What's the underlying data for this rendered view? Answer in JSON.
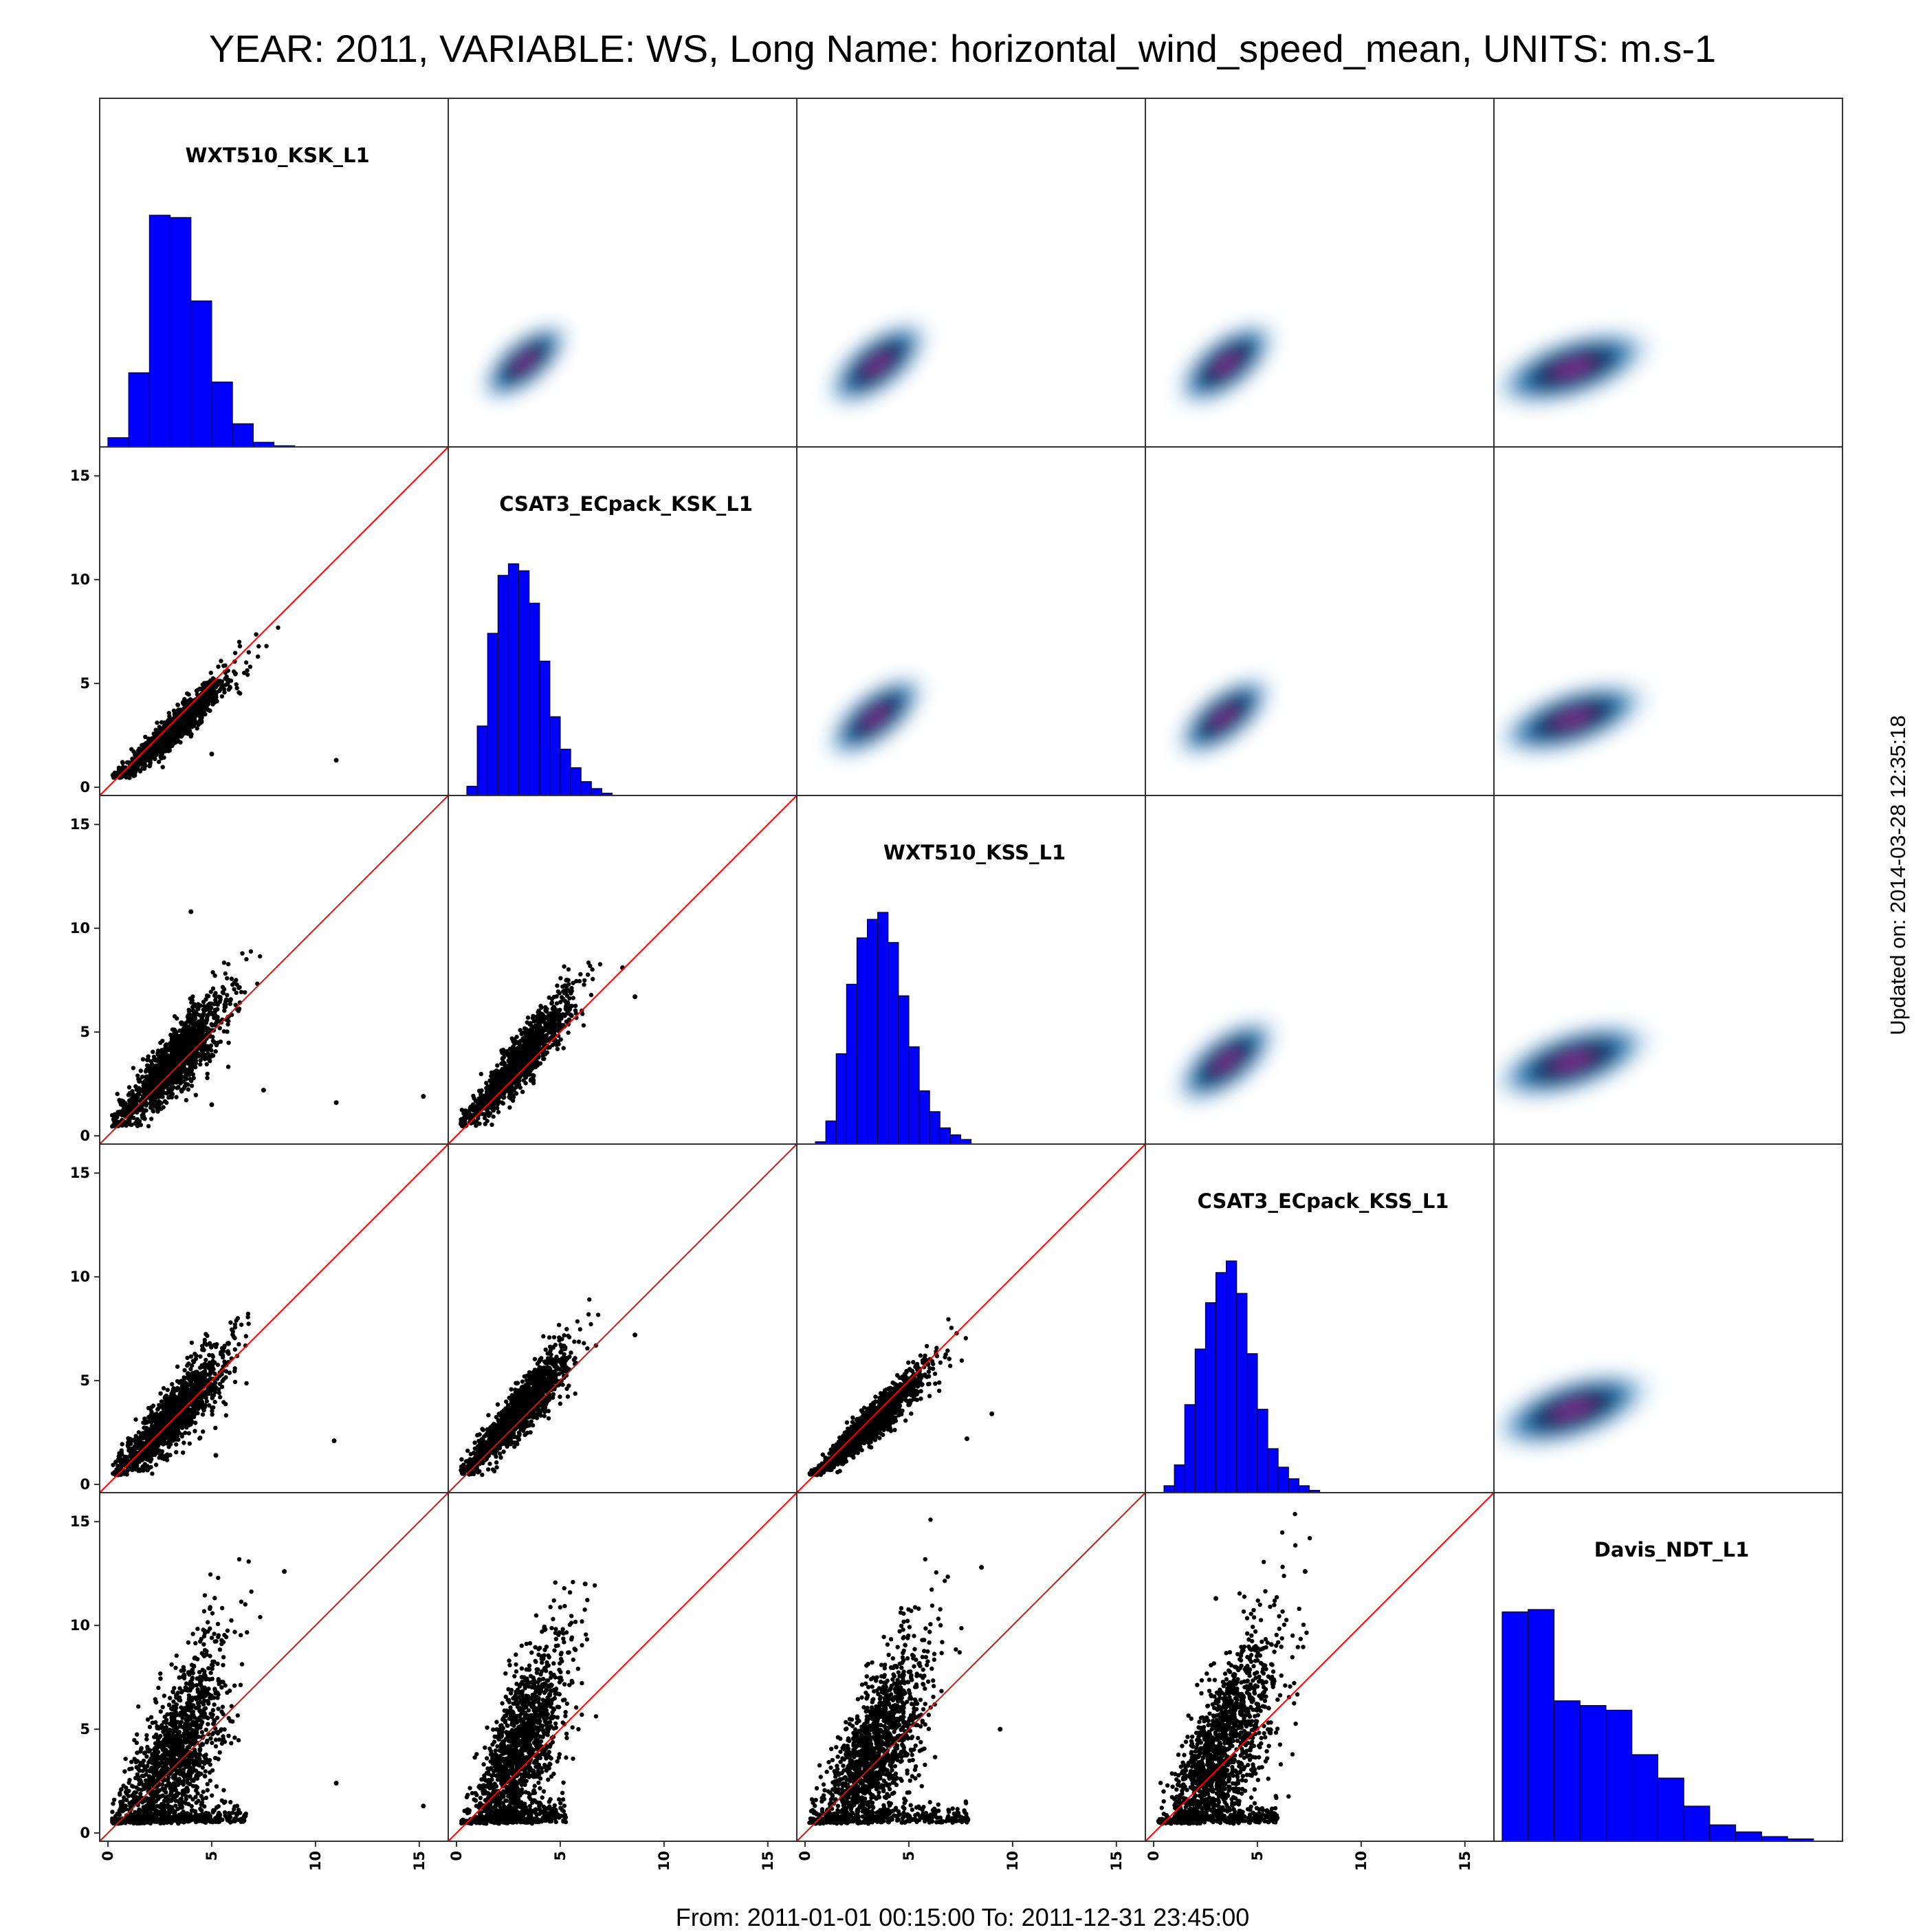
{
  "page": {
    "title": "YEAR: 2011, VARIABLE: WS, Long Name: horizontal_wind_speed_mean, UNITS: m.s-1",
    "footer": "From: 2011-01-01 00:15:00 To: 2011-12-31 23:45:00",
    "updated": "Updated on: 2014-03-28 12:35:18"
  },
  "colors": {
    "histogram_fill": "#0000ff",
    "histogram_edge": "#000033",
    "points": "#000000",
    "identity_line": "#ff0000",
    "density_low": "#dcebf7",
    "density_mid": "#2c7fb8",
    "density_dark": "#0b2a55",
    "density_peak": "#7b2d8e"
  },
  "chart_data": {
    "type": "scatter-matrix",
    "variables": [
      "WXT510_KSK_L1",
      "CSAT3_ECpack_KSK_L1",
      "WXT510_KSS_L1",
      "CSAT3_ECpack_KSS_L1",
      "Davis_NDT_L1"
    ],
    "axis_range": [
      0,
      16
    ],
    "ticks": [
      0,
      5,
      10,
      15
    ],
    "tick_labels": [
      "0",
      "5",
      "10",
      "15"
    ],
    "lower_triangle": "scatter with 1:1 line",
    "upper_triangle": "2D kernel density",
    "diagonal": "histogram",
    "histograms": [
      {
        "variable": "WXT510_KSK_L1",
        "bin_width": 1,
        "start": 0,
        "counts": [
          4,
          32,
          100,
          99,
          63,
          28,
          10,
          2,
          0.5
        ]
      },
      {
        "variable": "CSAT3_ECpack_KSK_L1",
        "bin_width": 0.5,
        "start": 0.5,
        "counts": [
          4,
          30,
          70,
          95,
          100,
          97,
          83,
          58,
          34,
          20,
          12,
          6,
          3,
          1
        ]
      },
      {
        "variable": "WXT510_KSS_L1",
        "bin_width": 0.5,
        "start": 0.5,
        "counts": [
          1,
          10,
          39,
          69,
          89,
          97,
          100,
          87,
          64,
          42,
          23,
          14,
          7,
          4,
          2
        ]
      },
      {
        "variable": "CSAT3_ECpack_KSS_L1",
        "bin_width": 0.5,
        "start": 0.5,
        "counts": [
          3,
          12,
          38,
          62,
          82,
          95,
          100,
          86,
          60,
          36,
          19,
          11,
          6,
          3,
          1
        ]
      },
      {
        "variable": "Davis_NDT_L1",
        "bin_width": 1.25,
        "start": 0,
        "counts": [
          98,
          99,
          60,
          58,
          56,
          37,
          27,
          15,
          7,
          4,
          2,
          1
        ]
      }
    ],
    "scatter_pairs": [
      {
        "x": "WXT510_KSK_L1",
        "y": "CSAT3_ECpack_KSK_L1",
        "slope": 0.9,
        "intercept": 0.0,
        "spread": 0.35,
        "x_mean": 3.1,
        "x_sd": 1.3,
        "x_max": 8.7,
        "outliers": [
          [
            11.0,
            1.3
          ],
          [
            5.0,
            1.6
          ]
        ]
      },
      {
        "x": "WXT510_KSK_L1",
        "y": "WXT510_KSS_L1",
        "slope": 1.05,
        "intercept": 0.2,
        "spread": 0.7,
        "x_mean": 3.1,
        "x_sd": 1.3,
        "x_max": 8.7,
        "outliers": [
          [
            4.0,
            10.8
          ],
          [
            11.0,
            1.6
          ],
          [
            15.2,
            1.9
          ],
          [
            7.5,
            2.2
          ],
          [
            5.0,
            1.5
          ]
        ]
      },
      {
        "x": "CSAT3_ECpack_KSK_L1",
        "y": "WXT510_KSS_L1",
        "slope": 1.12,
        "intercept": 0.2,
        "spread": 0.55,
        "x_mean": 3.0,
        "x_sd": 1.2,
        "x_max": 7.3,
        "outliers": [
          [
            8.6,
            6.7
          ],
          [
            8.0,
            8.1
          ]
        ]
      },
      {
        "x": "WXT510_KSK_L1",
        "y": "CSAT3_ECpack_KSS_L1",
        "slope": 1.0,
        "intercept": 0.2,
        "spread": 0.65,
        "x_mean": 3.1,
        "x_sd": 1.3,
        "x_max": 8.7,
        "outliers": [
          [
            10.9,
            2.1
          ],
          [
            5.2,
            1.4
          ]
        ]
      },
      {
        "x": "CSAT3_ECpack_KSK_L1",
        "y": "CSAT3_ECpack_KSS_L1",
        "slope": 1.1,
        "intercept": 0.2,
        "spread": 0.55,
        "x_mean": 3.0,
        "x_sd": 1.2,
        "x_max": 7.3,
        "outliers": [
          [
            8.6,
            7.2
          ]
        ]
      },
      {
        "x": "WXT510_KSS_L1",
        "y": "CSAT3_ECpack_KSS_L1",
        "slope": 0.93,
        "intercept": 0.0,
        "spread": 0.38,
        "x_mean": 3.3,
        "x_sd": 1.3,
        "x_max": 9.9,
        "outliers": [
          [
            9.0,
            3.4
          ],
          [
            7.8,
            2.2
          ]
        ]
      },
      {
        "x": "WXT510_KSK_L1",
        "y": "Davis_NDT_L1",
        "slope": 1.35,
        "intercept": -0.6,
        "spread": 1.7,
        "x_mean": 3.1,
        "x_sd": 1.3,
        "x_max": 8.7,
        "outliers": [
          [
            11.0,
            2.4
          ],
          [
            15.2,
            1.3
          ],
          [
            8.5,
            12.6
          ]
        ]
      },
      {
        "x": "CSAT3_ECpack_KSK_L1",
        "y": "Davis_NDT_L1",
        "slope": 1.55,
        "intercept": -0.7,
        "spread": 1.6,
        "x_mean": 3.0,
        "x_sd": 1.2,
        "x_max": 7.3,
        "outliers": [
          [
            6.2,
            12.0
          ]
        ]
      },
      {
        "x": "WXT510_KSS_L1",
        "y": "Davis_NDT_L1",
        "slope": 1.35,
        "intercept": -0.5,
        "spread": 1.6,
        "x_mean": 3.3,
        "x_sd": 1.3,
        "x_max": 9.9,
        "outliers": [
          [
            9.4,
            5.0
          ],
          [
            8.5,
            12.8
          ]
        ]
      },
      {
        "x": "CSAT3_ECpack_KSS_L1",
        "y": "Davis_NDT_L1",
        "slope": 1.4,
        "intercept": -0.5,
        "spread": 1.6,
        "x_mean": 3.3,
        "x_sd": 1.3,
        "x_max": 8.0,
        "outliers": [
          [
            3.0,
            11.3
          ],
          [
            7.3,
            12.6
          ]
        ]
      }
    ],
    "density_cores": [
      {
        "x": "CSAT3_ECpack_KSK_L1",
        "y": "WXT510_KSK_L1",
        "center": [
          3.3,
          3.7
        ],
        "rx": 3.2,
        "ry": 1.5,
        "angle": -40
      },
      {
        "x": "WXT510_KSS_L1",
        "y": "WXT510_KSK_L1",
        "center": [
          3.5,
          3.6
        ],
        "rx": 3.6,
        "ry": 1.7,
        "angle": -38
      },
      {
        "x": "CSAT3_ECpack_KSS_L1",
        "y": "WXT510_KSK_L1",
        "center": [
          3.5,
          3.6
        ],
        "rx": 3.5,
        "ry": 1.7,
        "angle": -38
      },
      {
        "x": "Davis_NDT_L1",
        "y": "WXT510_KSK_L1",
        "center": [
          3.4,
          3.4
        ],
        "rx": 4.8,
        "ry": 1.9,
        "angle": -18
      },
      {
        "x": "WXT510_KSS_L1",
        "y": "CSAT3_ECpack_KSK_L1",
        "center": [
          3.4,
          3.4
        ],
        "rx": 3.5,
        "ry": 1.6,
        "angle": -38
      },
      {
        "x": "CSAT3_ECpack_KSS_L1",
        "y": "CSAT3_ECpack_KSK_L1",
        "center": [
          3.4,
          3.4
        ],
        "rx": 3.4,
        "ry": 1.6,
        "angle": -38
      },
      {
        "x": "Davis_NDT_L1",
        "y": "CSAT3_ECpack_KSK_L1",
        "center": [
          3.4,
          3.3
        ],
        "rx": 4.6,
        "ry": 1.8,
        "angle": -18
      },
      {
        "x": "CSAT3_ECpack_KSS_L1",
        "y": "WXT510_KSS_L1",
        "center": [
          3.5,
          3.6
        ],
        "rx": 3.6,
        "ry": 1.7,
        "angle": -38
      },
      {
        "x": "Davis_NDT_L1",
        "y": "WXT510_KSS_L1",
        "center": [
          3.4,
          3.6
        ],
        "rx": 4.8,
        "ry": 1.9,
        "angle": -18
      },
      {
        "x": "Davis_NDT_L1",
        "y": "CSAT3_ECpack_KSS_L1",
        "center": [
          3.4,
          3.6
        ],
        "rx": 4.8,
        "ry": 1.9,
        "angle": -18
      }
    ]
  }
}
